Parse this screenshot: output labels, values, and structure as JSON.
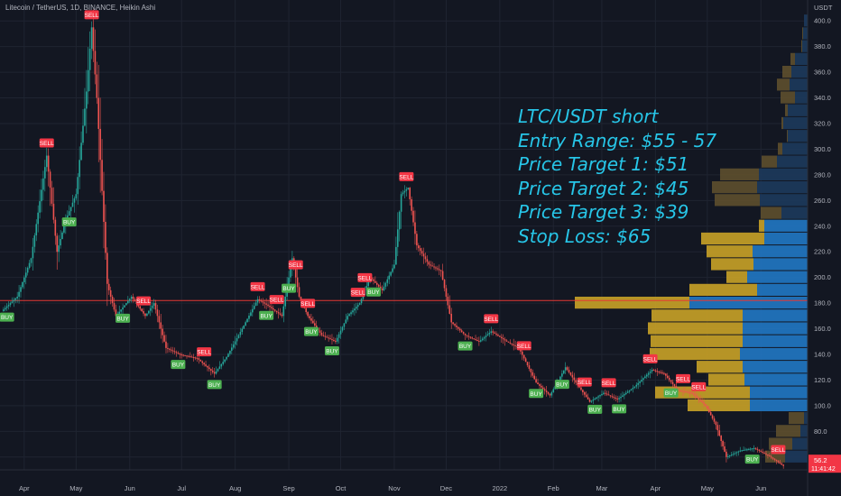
{
  "header": {
    "title": "Litecoin / TetherUS, 1D, BINANCE, Heikin Ashi"
  },
  "annotation": {
    "lines": [
      "LTC/USDT short",
      "Entry Range: $55 - 57",
      "Price Target 1: $51",
      "Price Target 2: $45",
      "Price Target 3: $39",
      "Stop Loss: $65"
    ]
  },
  "colors": {
    "background": "#131722",
    "up": "#26a69a",
    "down": "#ef5350",
    "hline": "#e53935",
    "vp_up_value_area": "#2178c4",
    "vp_down_value_area": "#c9a227",
    "vp_up": "#1d3a5c",
    "vp_down": "#5e4f2e",
    "overlay_text": "#27c6e8"
  },
  "chart_data": {
    "type": "candlestick",
    "title": "Litecoin / TetherUS, 1D, BINANCE, Heikin Ashi",
    "y_axis_label": "USDT",
    "ylim": [
      50,
      410
    ],
    "y_ticks": [
      "400.0",
      "380.0",
      "360.0",
      "340.0",
      "320.0",
      "300.0",
      "280.0",
      "260.0",
      "240.0",
      "220.0",
      "200.0",
      "180.0",
      "160.0",
      "140.0",
      "120.0",
      "100.0",
      "80.0",
      "60.0"
    ],
    "x_ticks": [
      "Apr",
      "May",
      "Jun",
      "Jul",
      "Aug",
      "Sep",
      "Oct",
      "Nov",
      "Dec",
      "2022",
      "Feb",
      "Mar",
      "Apr",
      "May",
      "Jun"
    ],
    "horizontal_line": 182,
    "last_price": {
      "value": "56.2",
      "countdown": "11:41:42"
    },
    "price_path": [
      {
        "date": "2021-03-20",
        "price": 175
      },
      {
        "date": "2021-03-28",
        "price": 185
      },
      {
        "date": "2021-04-05",
        "price": 215
      },
      {
        "date": "2021-04-14",
        "price": 295
      },
      {
        "date": "2021-04-20",
        "price": 220
      },
      {
        "date": "2021-04-25",
        "price": 245
      },
      {
        "date": "2021-05-01",
        "price": 265
      },
      {
        "date": "2021-05-07",
        "price": 345
      },
      {
        "date": "2021-05-10",
        "price": 395
      },
      {
        "date": "2021-05-13",
        "price": 340
      },
      {
        "date": "2021-05-19",
        "price": 195
      },
      {
        "date": "2021-05-24",
        "price": 170
      },
      {
        "date": "2021-06-02",
        "price": 185
      },
      {
        "date": "2021-06-10",
        "price": 170
      },
      {
        "date": "2021-06-15",
        "price": 180
      },
      {
        "date": "2021-06-22",
        "price": 145
      },
      {
        "date": "2021-06-30",
        "price": 140
      },
      {
        "date": "2021-07-10",
        "price": 137
      },
      {
        "date": "2021-07-20",
        "price": 125
      },
      {
        "date": "2021-07-27",
        "price": 138
      },
      {
        "date": "2021-08-05",
        "price": 160
      },
      {
        "date": "2021-08-14",
        "price": 183
      },
      {
        "date": "2021-08-20",
        "price": 178
      },
      {
        "date": "2021-08-28",
        "price": 170
      },
      {
        "date": "2021-09-03",
        "price": 215
      },
      {
        "date": "2021-09-07",
        "price": 185
      },
      {
        "date": "2021-09-12",
        "price": 170
      },
      {
        "date": "2021-09-20",
        "price": 155
      },
      {
        "date": "2021-09-28",
        "price": 150
      },
      {
        "date": "2021-10-05",
        "price": 170
      },
      {
        "date": "2021-10-12",
        "price": 180
      },
      {
        "date": "2021-10-18",
        "price": 200
      },
      {
        "date": "2021-10-25",
        "price": 190
      },
      {
        "date": "2021-11-01",
        "price": 210
      },
      {
        "date": "2021-11-05",
        "price": 265
      },
      {
        "date": "2021-11-09",
        "price": 270
      },
      {
        "date": "2021-11-14",
        "price": 225
      },
      {
        "date": "2021-11-21",
        "price": 210
      },
      {
        "date": "2021-11-28",
        "price": 205
      },
      {
        "date": "2021-12-04",
        "price": 165
      },
      {
        "date": "2021-12-12",
        "price": 155
      },
      {
        "date": "2021-12-20",
        "price": 150
      },
      {
        "date": "2021-12-27",
        "price": 158
      },
      {
        "date": "2022-01-05",
        "price": 150
      },
      {
        "date": "2022-01-12",
        "price": 145
      },
      {
        "date": "2022-01-22",
        "price": 118
      },
      {
        "date": "2022-01-30",
        "price": 108
      },
      {
        "date": "2022-02-08",
        "price": 130
      },
      {
        "date": "2022-02-14",
        "price": 118
      },
      {
        "date": "2022-02-22",
        "price": 103
      },
      {
        "date": "2022-03-02",
        "price": 110
      },
      {
        "date": "2022-03-10",
        "price": 105
      },
      {
        "date": "2022-03-20",
        "price": 115
      },
      {
        "date": "2022-03-30",
        "price": 128
      },
      {
        "date": "2022-04-06",
        "price": 125
      },
      {
        "date": "2022-04-14",
        "price": 112
      },
      {
        "date": "2022-04-22",
        "price": 110
      },
      {
        "date": "2022-04-30",
        "price": 100
      },
      {
        "date": "2022-05-06",
        "price": 85
      },
      {
        "date": "2022-05-12",
        "price": 60
      },
      {
        "date": "2022-05-20",
        "price": 65
      },
      {
        "date": "2022-05-28",
        "price": 67
      },
      {
        "date": "2022-06-04",
        "price": 62
      },
      {
        "date": "2022-06-10",
        "price": 57
      },
      {
        "date": "2022-06-14",
        "price": 53
      }
    ],
    "signals": [
      {
        "date": "2021-03-22",
        "label": "BUY"
      },
      {
        "date": "2021-04-14",
        "label": "SELL"
      },
      {
        "date": "2021-04-27",
        "label": "BUY"
      },
      {
        "date": "2021-05-10",
        "label": "SELL"
      },
      {
        "date": "2021-05-28",
        "label": "BUY"
      },
      {
        "date": "2021-06-09",
        "label": "SELL"
      },
      {
        "date": "2021-06-29",
        "label": "BUY"
      },
      {
        "date": "2021-07-14",
        "label": "SELL"
      },
      {
        "date": "2021-07-20",
        "label": "BUY"
      },
      {
        "date": "2021-08-14",
        "label": "SELL"
      },
      {
        "date": "2021-08-19",
        "label": "BUY"
      },
      {
        "date": "2021-08-25",
        "label": "SELL"
      },
      {
        "date": "2021-09-01",
        "label": "BUY"
      },
      {
        "date": "2021-09-05",
        "label": "SELL"
      },
      {
        "date": "2021-09-12",
        "label": "SELL"
      },
      {
        "date": "2021-09-14",
        "label": "BUY"
      },
      {
        "date": "2021-09-26",
        "label": "BUY"
      },
      {
        "date": "2021-10-11",
        "label": "SELL"
      },
      {
        "date": "2021-10-15",
        "label": "SELL"
      },
      {
        "date": "2021-10-20",
        "label": "BUY"
      },
      {
        "date": "2021-11-08",
        "label": "SELL"
      },
      {
        "date": "2021-12-12",
        "label": "BUY"
      },
      {
        "date": "2021-12-27",
        "label": "SELL"
      },
      {
        "date": "2022-01-15",
        "label": "SELL"
      },
      {
        "date": "2022-01-22",
        "label": "BUY"
      },
      {
        "date": "2022-02-06",
        "label": "BUY"
      },
      {
        "date": "2022-02-19",
        "label": "SELL"
      },
      {
        "date": "2022-02-25",
        "label": "BUY"
      },
      {
        "date": "2022-03-05",
        "label": "SELL"
      },
      {
        "date": "2022-03-11",
        "label": "BUY"
      },
      {
        "date": "2022-03-29",
        "label": "SELL"
      },
      {
        "date": "2022-04-10",
        "label": "BUY"
      },
      {
        "date": "2022-04-17",
        "label": "SELL"
      },
      {
        "date": "2022-04-26",
        "label": "SELL"
      },
      {
        "date": "2022-05-27",
        "label": "BUY"
      },
      {
        "date": "2022-06-11",
        "label": "SELL"
      }
    ],
    "volume_profile": [
      {
        "price": 400,
        "up": 4,
        "down": 0,
        "value_area": false
      },
      {
        "price": 390,
        "up": 5,
        "down": 1,
        "value_area": false
      },
      {
        "price": 380,
        "up": 6,
        "down": 1,
        "value_area": false
      },
      {
        "price": 370,
        "up": 14,
        "down": 5,
        "value_area": false
      },
      {
        "price": 360,
        "up": 18,
        "down": 10,
        "value_area": false
      },
      {
        "price": 350,
        "up": 20,
        "down": 14,
        "value_area": false
      },
      {
        "price": 340,
        "up": 14,
        "down": 16,
        "value_area": false
      },
      {
        "price": 330,
        "up": 22,
        "down": 3,
        "value_area": false
      },
      {
        "price": 320,
        "up": 27,
        "down": 2,
        "value_area": false
      },
      {
        "price": 310,
        "up": 22,
        "down": 1,
        "value_area": false
      },
      {
        "price": 300,
        "up": 28,
        "down": 5,
        "value_area": false
      },
      {
        "price": 290,
        "up": 34,
        "down": 17,
        "value_area": false
      },
      {
        "price": 280,
        "up": 54,
        "down": 43,
        "value_area": false
      },
      {
        "price": 270,
        "up": 56,
        "down": 50,
        "value_area": false
      },
      {
        "price": 260,
        "up": 53,
        "down": 50,
        "value_area": false
      },
      {
        "price": 250,
        "up": 29,
        "down": 23,
        "value_area": false
      },
      {
        "price": 240,
        "up": 48,
        "down": 6,
        "value_area": true
      },
      {
        "price": 230,
        "up": 48,
        "down": 70,
        "value_area": true
      },
      {
        "price": 220,
        "up": 61,
        "down": 51,
        "value_area": true
      },
      {
        "price": 210,
        "up": 60,
        "down": 47,
        "value_area": true
      },
      {
        "price": 200,
        "up": 67,
        "down": 23,
        "value_area": true
      },
      {
        "price": 190,
        "up": 56,
        "down": 75,
        "value_area": true
      },
      {
        "price": 180,
        "up": 131,
        "down": 127,
        "value_area": true
      },
      {
        "price": 170,
        "up": 72,
        "down": 101,
        "value_area": true
      },
      {
        "price": 160,
        "up": 72,
        "down": 105,
        "value_area": true
      },
      {
        "price": 150,
        "up": 72,
        "down": 102,
        "value_area": true
      },
      {
        "price": 140,
        "up": 75,
        "down": 100,
        "value_area": true
      },
      {
        "price": 130,
        "up": 72,
        "down": 51,
        "value_area": true
      },
      {
        "price": 120,
        "up": 70,
        "down": 40,
        "value_area": true
      },
      {
        "price": 110,
        "up": 64,
        "down": 105,
        "value_area": true
      },
      {
        "price": 100,
        "up": 64,
        "down": 69,
        "value_area": true
      },
      {
        "price": 90,
        "up": 4,
        "down": 17,
        "value_area": false
      },
      {
        "price": 80,
        "up": 8,
        "down": 27,
        "value_area": false
      },
      {
        "price": 70,
        "up": 17,
        "down": 26,
        "value_area": false
      },
      {
        "price": 60,
        "up": 25,
        "down": 22,
        "value_area": false
      }
    ]
  }
}
